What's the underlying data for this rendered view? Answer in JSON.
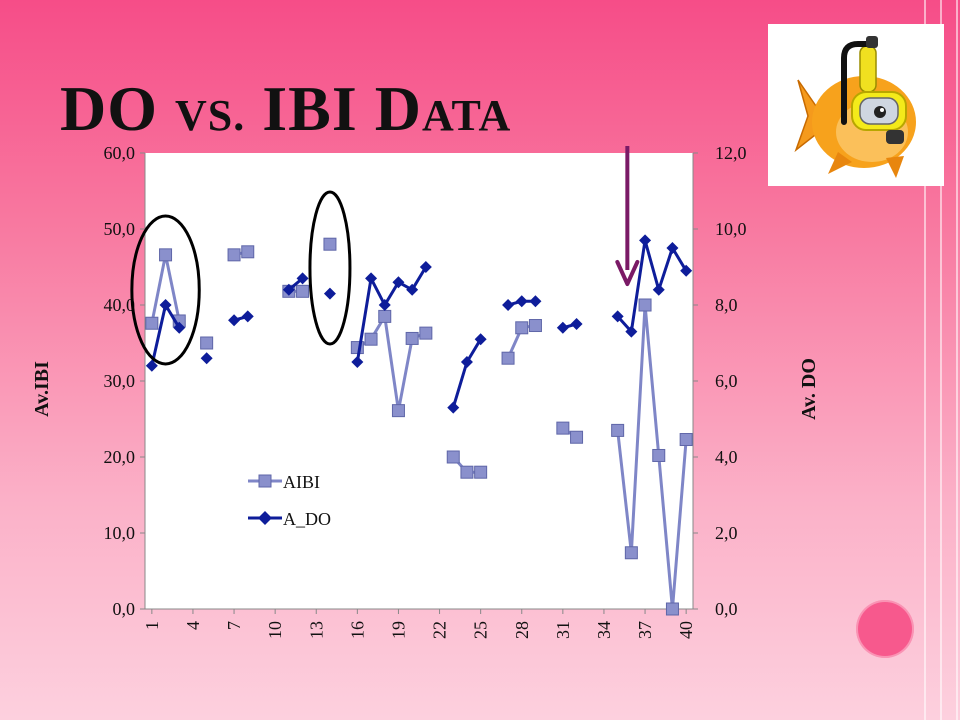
{
  "slide": {
    "title_lead": "DO",
    "title_vs": "VS.",
    "title_ibi": "IBI",
    "title_d": "D",
    "title_ata": "ATA"
  },
  "colors": {
    "background_top": "#f64d88",
    "background_bottom": "#fdd0de",
    "ibi_line": "#7f86c7",
    "ibi_marker": "#8a90cc",
    "do_line": "#0e1d9a",
    "do_marker": "#0e1d9a",
    "annotation_arrow": "#7a1a66",
    "annotation_ellipse": "#000000"
  },
  "logo_icon": "diver-fish-icon",
  "chart_data": {
    "type": "line",
    "x": [
      1,
      2,
      3,
      4,
      5,
      6,
      7,
      8,
      9,
      10,
      11,
      12,
      13,
      14,
      15,
      16,
      17,
      18,
      19,
      20,
      21,
      22,
      23,
      24,
      25,
      26,
      27,
      28,
      29,
      30,
      31,
      32,
      33,
      34,
      35,
      36,
      37,
      38,
      39,
      40
    ],
    "x_tick_labels": [
      "1",
      "4",
      "7",
      "10",
      "13",
      "16",
      "19",
      "22",
      "25",
      "28",
      "31",
      "34",
      "37",
      "40"
    ],
    "x_tick_positions": [
      1,
      4,
      7,
      10,
      13,
      16,
      19,
      22,
      25,
      28,
      31,
      34,
      37,
      40
    ],
    "y_left": {
      "label": "Av.IBI",
      "min": 0,
      "max": 60,
      "ticks": [
        "0,0",
        "10,0",
        "20,0",
        "30,0",
        "40,0",
        "50,0",
        "60,0"
      ]
    },
    "y_right": {
      "label": "Av. DO",
      "min": 0,
      "max": 12,
      "ticks": [
        "0,0",
        "2,0",
        "4,0",
        "6,0",
        "8,0",
        "10,0",
        "12,0"
      ]
    },
    "series": [
      {
        "name": "AIBI",
        "axis": "left",
        "marker": "square",
        "values": [
          37.6,
          46.6,
          37.9,
          null,
          35.0,
          null,
          46.6,
          47.0,
          null,
          null,
          41.8,
          41.8,
          null,
          48.0,
          null,
          34.4,
          35.5,
          38.5,
          26.1,
          35.6,
          36.3,
          null,
          20.0,
          18.0,
          18.0,
          null,
          33.0,
          37.0,
          37.3,
          null,
          23.8,
          22.6,
          null,
          null,
          23.5,
          7.4,
          40.0,
          20.2,
          0.0,
          22.3
        ]
      },
      {
        "name": "A_DO",
        "axis": "right",
        "marker": "diamond",
        "values": [
          6.4,
          8.0,
          7.4,
          null,
          6.6,
          null,
          7.6,
          7.7,
          null,
          null,
          8.4,
          8.7,
          null,
          8.3,
          null,
          6.5,
          8.7,
          8.0,
          8.6,
          8.4,
          9.0,
          null,
          5.3,
          6.5,
          7.1,
          null,
          8.0,
          8.1,
          8.1,
          null,
          7.4,
          7.5,
          null,
          null,
          7.7,
          7.3,
          9.7,
          8.4,
          9.5,
          8.9
        ]
      }
    ],
    "legend": {
      "placement": "center-left",
      "entries": [
        "AIBI",
        "A_DO"
      ]
    },
    "annotations": [
      {
        "type": "ellipse",
        "around_x": [
          1,
          3
        ]
      },
      {
        "type": "ellipse",
        "around_x": [
          14,
          14
        ]
      },
      {
        "type": "arrow",
        "points_to_x": 36,
        "direction": "down"
      }
    ]
  }
}
